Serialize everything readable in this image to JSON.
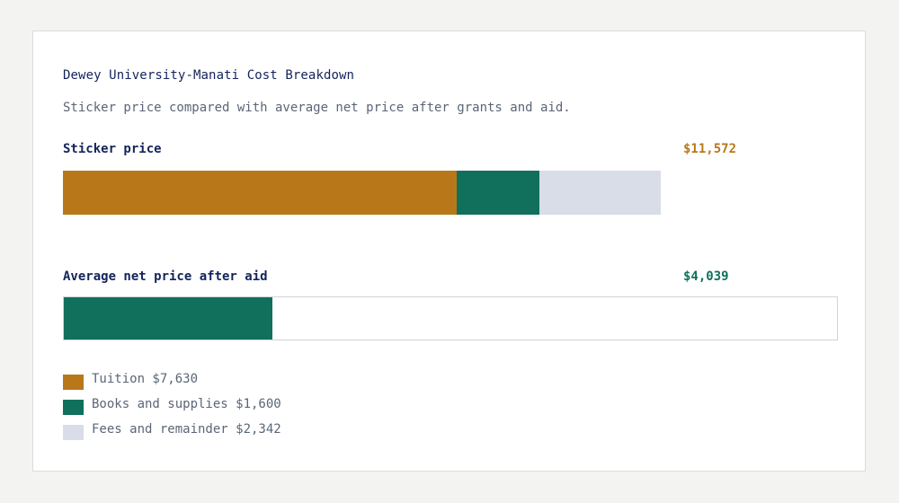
{
  "chart_data": {
    "type": "bar",
    "orientation": "horizontal",
    "stacked": true,
    "title": "Dewey University-Manati Cost Breakdown",
    "subtitle": "Sticker price compared with average net price after grants and aid.",
    "xlim": [
      0,
      15000
    ],
    "rows": [
      {
        "label": "Sticker price",
        "value_label": "$11,572",
        "value_color": "#b8781a",
        "outlined": false,
        "segments": [
          {
            "name": "Tuition",
            "value": 7630,
            "color": "#b8781a"
          },
          {
            "name": "Books and supplies",
            "value": 1600,
            "color": "#10705c"
          },
          {
            "name": "Fees and remainder",
            "value": 2342,
            "color": "#d8dde7"
          }
        ]
      },
      {
        "label": "Average net price after aid",
        "value_label": "$4,039",
        "value_color": "#10705c",
        "outlined": true,
        "segments": [
          {
            "name": "Average net price",
            "value": 4039,
            "color": "#10705c"
          }
        ]
      }
    ],
    "legend": [
      {
        "label": "Tuition $7,630",
        "color": "#b8781a"
      },
      {
        "label": "Books and supplies $1,600",
        "color": "#10705c"
      },
      {
        "label": "Fees and remainder $2,342",
        "color": "#d8dde7"
      }
    ]
  }
}
